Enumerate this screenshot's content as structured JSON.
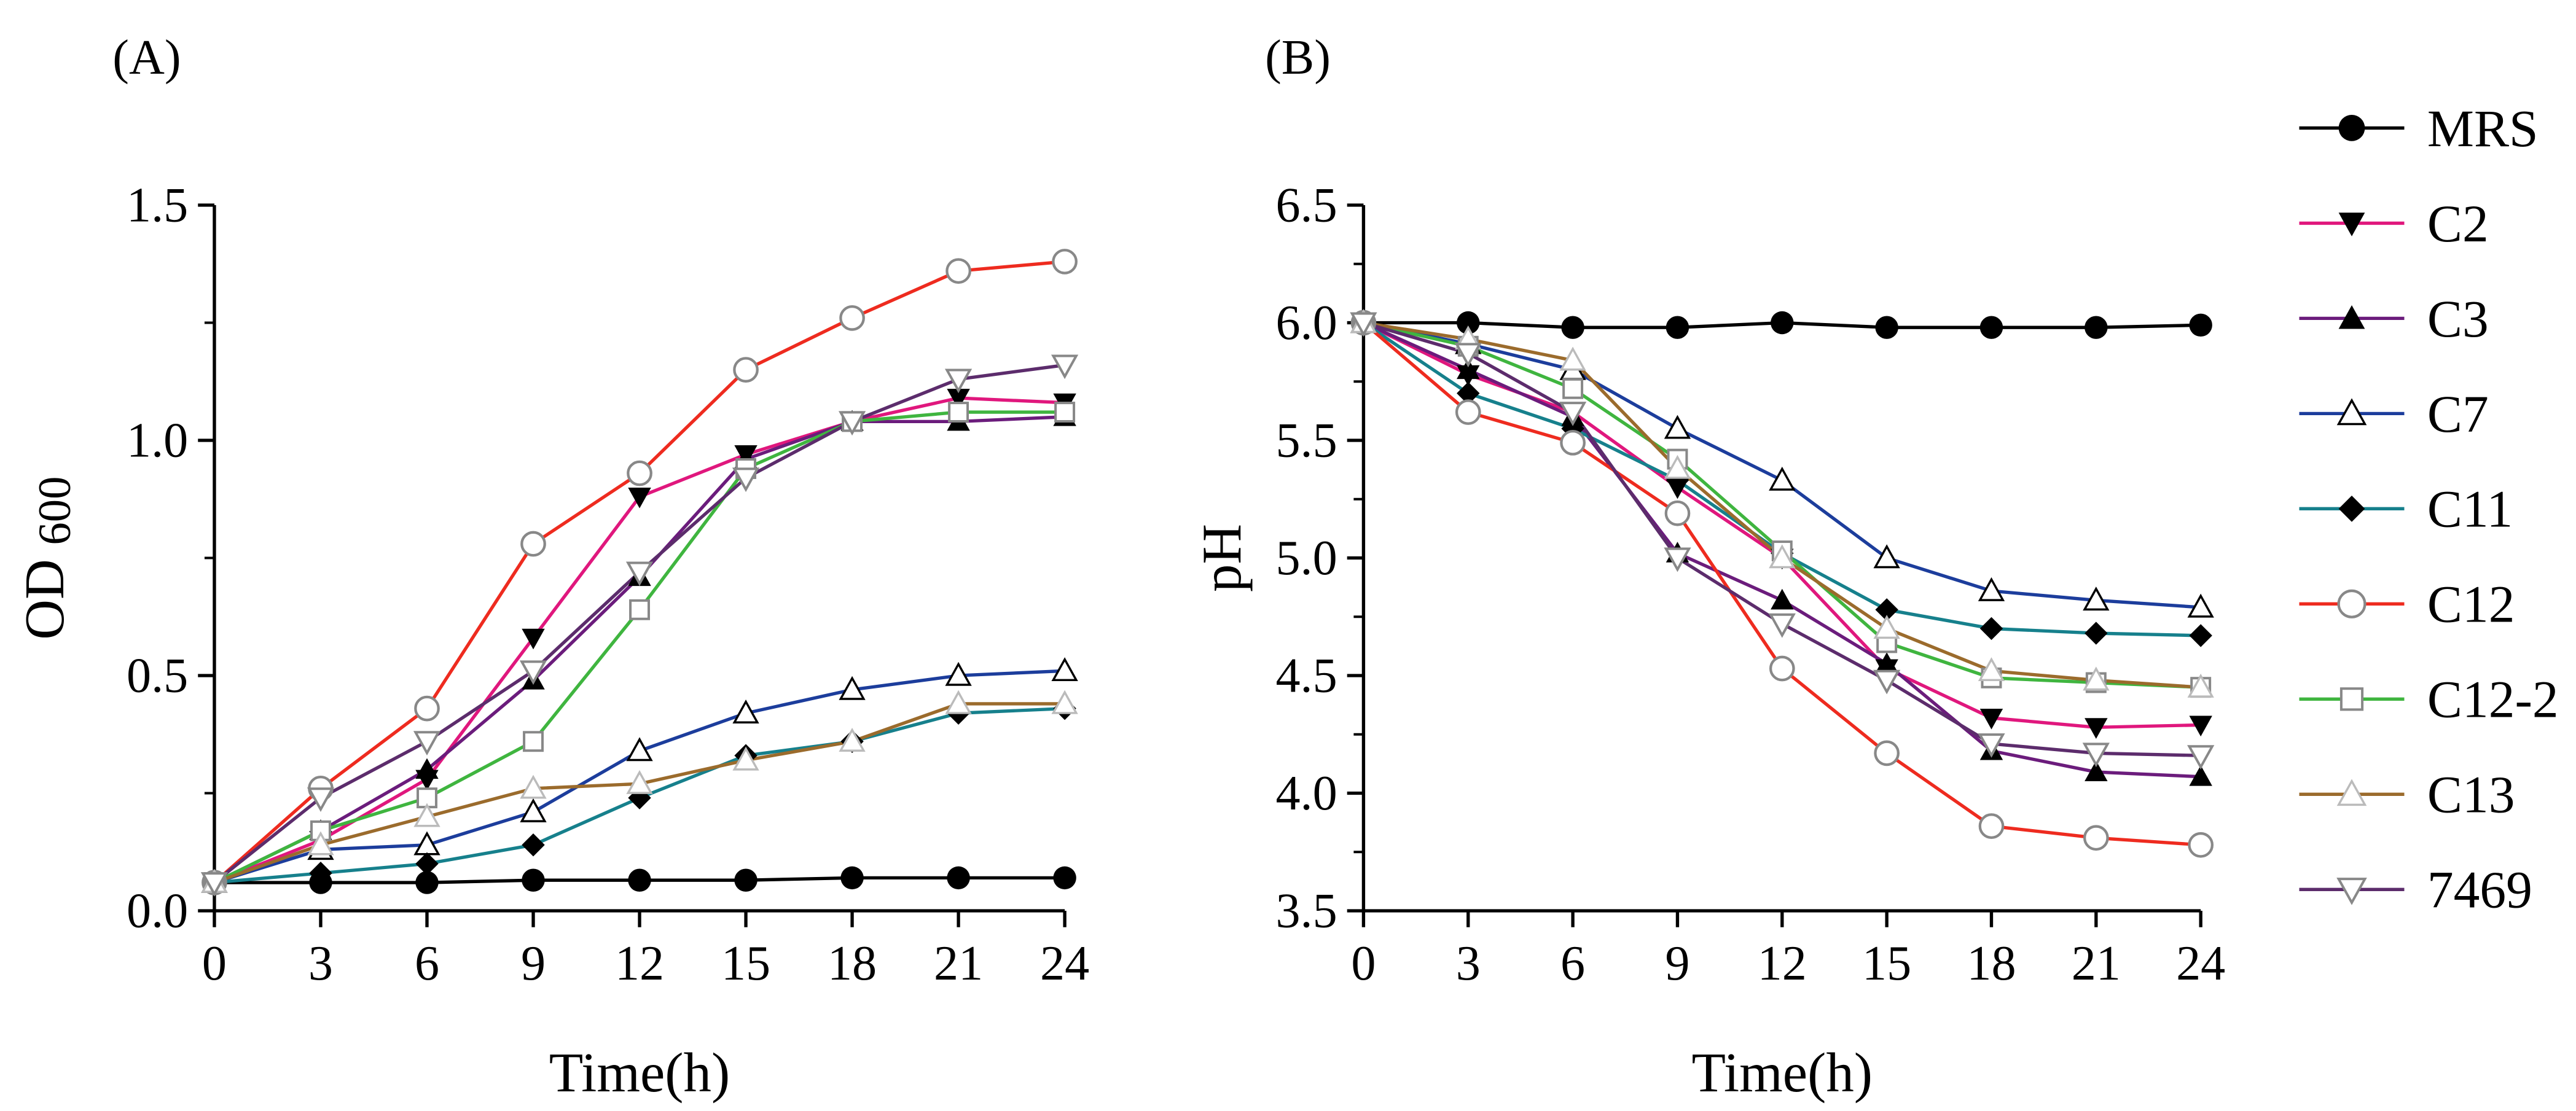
{
  "chart_data": [
    {
      "type": "line",
      "panel_label": "(A)",
      "xlabel": "Time(h)",
      "ylabel": "OD",
      "ylabel_sub": "600",
      "x": [
        0,
        3,
        6,
        9,
        12,
        15,
        18,
        21,
        24
      ],
      "xlim": [
        0,
        24
      ],
      "ylim": [
        0,
        1.5
      ],
      "xticks": [
        "0",
        "3",
        "6",
        "9",
        "12",
        "15",
        "18",
        "21",
        "24"
      ],
      "yticks": [
        "0.0",
        "0.5",
        "1.0",
        "1.5"
      ],
      "ytick_values": [
        0,
        0.5,
        1.0,
        1.5
      ],
      "grid": false,
      "series": [
        {
          "name": "MRS",
          "values": [
            0.06,
            0.06,
            0.06,
            0.065,
            0.065,
            0.065,
            0.07,
            0.07,
            0.07
          ]
        },
        {
          "name": "C2",
          "values": [
            0.06,
            0.15,
            0.28,
            0.58,
            0.88,
            0.97,
            1.04,
            1.09,
            1.08
          ]
        },
        {
          "name": "C3",
          "values": [
            0.06,
            0.17,
            0.3,
            0.49,
            0.71,
            0.96,
            1.04,
            1.04,
            1.05
          ]
        },
        {
          "name": "C7",
          "values": [
            0.06,
            0.13,
            0.14,
            0.21,
            0.34,
            0.42,
            0.47,
            0.5,
            0.51
          ]
        },
        {
          "name": "C11",
          "values": [
            0.06,
            0.08,
            0.1,
            0.14,
            0.24,
            0.33,
            0.36,
            0.42,
            0.43
          ]
        },
        {
          "name": "C12",
          "values": [
            0.06,
            0.26,
            0.43,
            0.78,
            0.93,
            1.15,
            1.26,
            1.36,
            1.38
          ]
        },
        {
          "name": "C12-2",
          "values": [
            0.06,
            0.17,
            0.24,
            0.36,
            0.64,
            0.94,
            1.04,
            1.06,
            1.06
          ]
        },
        {
          "name": "C13",
          "values": [
            0.06,
            0.14,
            0.2,
            0.26,
            0.27,
            0.32,
            0.36,
            0.44,
            0.44
          ]
        },
        {
          "name": "7469",
          "values": [
            0.06,
            0.24,
            0.36,
            0.51,
            0.72,
            0.92,
            1.04,
            1.13,
            1.16
          ]
        }
      ]
    },
    {
      "type": "line",
      "panel_label": "(B)",
      "xlabel": "Time(h)",
      "ylabel": "pH",
      "x": [
        0,
        3,
        6,
        9,
        12,
        15,
        18,
        21,
        24
      ],
      "xlim": [
        0,
        24
      ],
      "ylim": [
        3.5,
        6.5
      ],
      "xticks": [
        "0",
        "3",
        "6",
        "9",
        "12",
        "15",
        "18",
        "21",
        "24"
      ],
      "yticks": [
        "3.5",
        "4.0",
        "4.5",
        "5.0",
        "5.5",
        "6.0",
        "6.5"
      ],
      "ytick_values": [
        3.5,
        4.0,
        4.5,
        5.0,
        5.5,
        6.0,
        6.5
      ],
      "grid": false,
      "series": [
        {
          "name": "MRS",
          "values": [
            6.0,
            6.0,
            5.98,
            5.98,
            6.0,
            5.98,
            5.98,
            5.98,
            5.99
          ]
        },
        {
          "name": "C2",
          "values": [
            6.0,
            5.78,
            5.62,
            5.3,
            5.0,
            4.53,
            4.32,
            4.28,
            4.29
          ]
        },
        {
          "name": "C3",
          "values": [
            6.0,
            5.8,
            5.6,
            5.02,
            4.82,
            4.55,
            4.18,
            4.09,
            4.07
          ]
        },
        {
          "name": "C7",
          "values": [
            6.0,
            5.91,
            5.8,
            5.55,
            5.33,
            5.0,
            4.86,
            4.82,
            4.79
          ]
        },
        {
          "name": "C11",
          "values": [
            6.0,
            5.7,
            5.55,
            5.33,
            5.02,
            4.78,
            4.7,
            4.68,
            4.67
          ]
        },
        {
          "name": "C12",
          "values": [
            6.0,
            5.62,
            5.49,
            5.19,
            4.53,
            4.17,
            3.86,
            3.81,
            3.78
          ]
        },
        {
          "name": "C12-2",
          "values": [
            6.0,
            5.9,
            5.72,
            5.42,
            5.03,
            4.64,
            4.49,
            4.47,
            4.45
          ]
        },
        {
          "name": "C13",
          "values": [
            6.0,
            5.93,
            5.84,
            5.38,
            5.0,
            4.7,
            4.52,
            4.48,
            4.45
          ]
        },
        {
          "name": "7469",
          "values": [
            6.0,
            5.87,
            5.62,
            5.0,
            4.72,
            4.48,
            4.21,
            4.17,
            4.16
          ]
        }
      ]
    }
  ],
  "legend": {
    "placement": "right",
    "entries": [
      {
        "name": "MRS",
        "color": "#000000",
        "marker": "filled-circle"
      },
      {
        "name": "C2",
        "color": "#e0177d",
        "marker": "filled-down-triangle"
      },
      {
        "name": "C3",
        "color": "#6b1c7c",
        "marker": "filled-up-triangle"
      },
      {
        "name": "C7",
        "color": "#1c3d9c",
        "marker": "open-up-triangle"
      },
      {
        "name": "C11",
        "color": "#16808c",
        "marker": "filled-diamond"
      },
      {
        "name": "C12",
        "color": "#ee2b1f",
        "marker": "open-circle"
      },
      {
        "name": "C12-2",
        "color": "#3fb53f",
        "marker": "open-square"
      },
      {
        "name": "C13",
        "color": "#9b6b2c",
        "marker": "open-up-triangle-light"
      },
      {
        "name": "7469",
        "color": "#5c2c6c",
        "marker": "open-down-triangle"
      }
    ]
  }
}
